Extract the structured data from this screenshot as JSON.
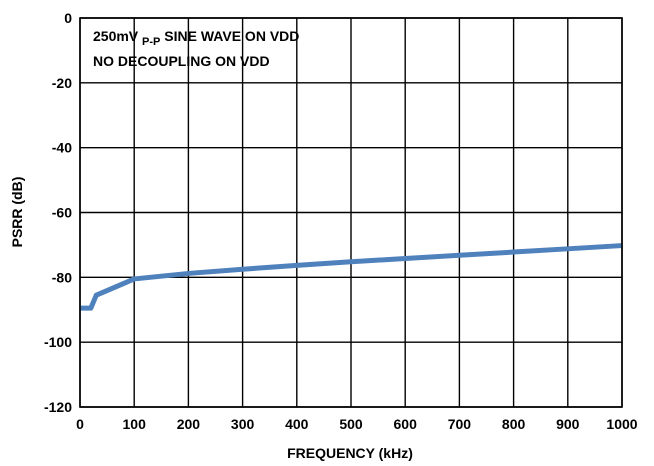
{
  "chart_data": {
    "type": "line",
    "xlabel": "FREQUENCY (kHz)",
    "ylabel": "PSRR (dB)",
    "xlim": [
      0,
      1000
    ],
    "ylim": [
      -120,
      0
    ],
    "grid": true,
    "xticks": [
      "0",
      "100",
      "200",
      "300",
      "400",
      "500",
      "600",
      "700",
      "800",
      "900",
      "1000"
    ],
    "yticks": [
      "0",
      "-20",
      "-40",
      "-60",
      "-80",
      "-100",
      "-120"
    ],
    "annotations": {
      "line1_main": "250mV",
      "line1_sub": "P-P",
      "line1_rest": " SINE WAVE ON VDD",
      "line2": "NO DECOUPLING ON VDD"
    },
    "series": [
      {
        "color": "#4F81BD",
        "x": [
          0,
          10,
          20,
          30,
          100,
          200,
          300,
          400,
          500,
          600,
          700,
          800,
          900,
          1000
        ],
        "y": [
          -89.5,
          -89.5,
          -89.5,
          -85.5,
          -80.5,
          -78.8,
          -77.5,
          -76.3,
          -75.2,
          -74.2,
          -73.2,
          -72.2,
          -71.2,
          -70.2
        ]
      }
    ]
  }
}
